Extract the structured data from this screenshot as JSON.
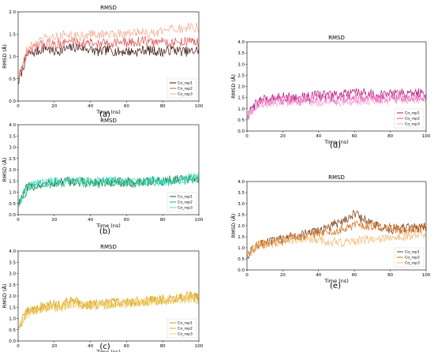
{
  "chart_data": [
    {
      "panel_label": "(a)",
      "type": "line",
      "title": "RMSD",
      "xlabel": "Time (ns)",
      "ylabel": "RMSD (Å)",
      "xlim": [
        0,
        100
      ],
      "ylim": [
        0,
        2.0
      ],
      "xticks": [
        0,
        20,
        40,
        60,
        80,
        100
      ],
      "yticks": [
        0.0,
        0.5,
        1.0,
        1.5,
        2.0
      ],
      "grid": false,
      "legend_position": "lower-right",
      "x": [
        0,
        5,
        10,
        15,
        20,
        25,
        30,
        35,
        40,
        45,
        50,
        55,
        60,
        65,
        70,
        75,
        80,
        85,
        90,
        95,
        100
      ],
      "series": [
        {
          "name": "Cα_rep1",
          "color": "#3d0f0f",
          "values": [
            0.4,
            1.05,
            1.1,
            1.2,
            1.1,
            1.15,
            1.2,
            1.2,
            1.15,
            1.1,
            1.15,
            1.1,
            1.12,
            1.1,
            1.15,
            1.12,
            1.1,
            1.15,
            1.12,
            1.1,
            1.15
          ]
        },
        {
          "name": "Cα_rep2",
          "color": "#d9534f",
          "values": [
            0.5,
            1.1,
            1.2,
            1.3,
            1.25,
            1.3,
            1.35,
            1.3,
            1.3,
            1.28,
            1.3,
            1.32,
            1.3,
            1.32,
            1.35,
            1.3,
            1.35,
            1.3,
            1.32,
            1.35,
            1.3
          ]
        },
        {
          "name": "Cα_rep3",
          "color": "#f2a992",
          "values": [
            0.5,
            1.15,
            1.3,
            1.4,
            1.4,
            1.5,
            1.45,
            1.45,
            1.5,
            1.48,
            1.5,
            1.52,
            1.5,
            1.55,
            1.52,
            1.5,
            1.55,
            1.6,
            1.62,
            1.65,
            1.65
          ]
        }
      ]
    },
    {
      "panel_label": "(b)",
      "type": "line",
      "title": "RMSD",
      "xlabel": "Time (ns)",
      "ylabel": "RMSD (Å)",
      "xlim": [
        0,
        100
      ],
      "ylim": [
        0,
        4.0
      ],
      "xticks": [
        0,
        20,
        40,
        60,
        80,
        100
      ],
      "yticks": [
        0.0,
        0.5,
        1.0,
        1.5,
        2.0,
        2.5,
        3.0,
        3.5,
        4.0
      ],
      "grid": false,
      "legend_position": "lower-right",
      "x": [
        0,
        5,
        10,
        15,
        20,
        25,
        30,
        35,
        40,
        45,
        50,
        55,
        60,
        65,
        70,
        75,
        80,
        85,
        90,
        95,
        100
      ],
      "series": [
        {
          "name": "Cα_rep1",
          "color": "#1e5a1e",
          "values": [
            0.5,
            1.2,
            1.3,
            1.35,
            1.4,
            1.45,
            1.5,
            1.45,
            1.4,
            1.45,
            1.4,
            1.45,
            1.45,
            1.45,
            1.45,
            1.5,
            1.5,
            1.55,
            1.55,
            1.6,
            1.6
          ]
        },
        {
          "name": "Cα_rep2",
          "color": "#1fb573",
          "values": [
            0.4,
            1.1,
            1.3,
            1.4,
            1.45,
            1.4,
            1.45,
            1.45,
            1.45,
            1.4,
            1.45,
            1.4,
            1.45,
            1.4,
            1.45,
            1.45,
            1.45,
            1.5,
            1.5,
            1.55,
            1.6
          ]
        },
        {
          "name": "Cα_rep3",
          "color": "#33e0d0",
          "values": [
            0.5,
            1.2,
            1.35,
            1.4,
            1.5,
            1.45,
            1.5,
            1.5,
            1.45,
            1.5,
            1.5,
            1.5,
            1.45,
            1.45,
            1.45,
            1.5,
            1.5,
            1.5,
            1.55,
            1.6,
            1.7
          ]
        }
      ]
    },
    {
      "panel_label": "(c)",
      "type": "line",
      "title": "RMSD",
      "xlabel": "Time (ns)",
      "ylabel": "RMSD (Å)",
      "xlim": [
        0,
        100
      ],
      "ylim": [
        0,
        4.0
      ],
      "xticks": [
        0,
        20,
        40,
        60,
        80,
        100
      ],
      "yticks": [
        0.0,
        0.5,
        1.0,
        1.5,
        2.0,
        2.5,
        3.0,
        3.5,
        4.0
      ],
      "grid": false,
      "legend_position": "lower-right",
      "x": [
        0,
        5,
        10,
        15,
        20,
        25,
        30,
        35,
        40,
        45,
        50,
        55,
        60,
        65,
        70,
        75,
        80,
        85,
        90,
        95,
        100
      ],
      "series": [
        {
          "name": "Cα_rep1",
          "color": "#d99a12",
          "values": [
            0.6,
            1.3,
            1.45,
            1.55,
            1.6,
            1.6,
            1.9,
            1.65,
            1.6,
            1.6,
            1.7,
            1.75,
            1.7,
            1.75,
            1.8,
            1.85,
            1.85,
            1.9,
            1.95,
            2.0,
            1.9
          ]
        },
        {
          "name": "Cα_rep2",
          "color": "#e3b22b",
          "values": [
            0.6,
            1.25,
            1.4,
            1.5,
            1.55,
            1.55,
            1.75,
            1.6,
            1.6,
            1.65,
            1.65,
            1.7,
            1.7,
            1.72,
            1.75,
            1.8,
            1.85,
            1.85,
            1.9,
            1.95,
            1.9
          ]
        },
        {
          "name": "Cα_rep3",
          "color": "#f0d37a",
          "values": [
            0.6,
            1.2,
            1.35,
            1.45,
            1.5,
            1.5,
            1.6,
            1.55,
            1.55,
            1.6,
            1.6,
            1.65,
            1.65,
            1.7,
            1.7,
            1.75,
            1.8,
            1.8,
            1.85,
            1.9,
            1.85
          ]
        }
      ]
    },
    {
      "panel_label": "(d)",
      "type": "line",
      "title": "RMSD",
      "xlabel": "Time (ns)",
      "ylabel": "RMSD (Å)",
      "xlim": [
        0,
        100
      ],
      "ylim": [
        0,
        4.0
      ],
      "xticks": [
        0,
        20,
        40,
        60,
        80,
        100
      ],
      "yticks": [
        0.0,
        0.5,
        1.0,
        1.5,
        2.0,
        2.5,
        3.0,
        3.5,
        4.0
      ],
      "grid": false,
      "legend_position": "lower-right",
      "x": [
        0,
        5,
        10,
        15,
        20,
        25,
        30,
        35,
        40,
        45,
        50,
        55,
        60,
        65,
        70,
        75,
        80,
        85,
        90,
        95,
        100
      ],
      "series": [
        {
          "name": "Cα_rep1",
          "color": "#b0147a",
          "values": [
            0.6,
            1.3,
            1.4,
            1.5,
            1.55,
            1.5,
            1.5,
            1.55,
            1.6,
            1.65,
            1.6,
            1.65,
            1.7,
            1.7,
            1.65,
            1.6,
            1.65,
            1.7,
            1.65,
            1.7,
            1.7
          ]
        },
        {
          "name": "Cα_rep2",
          "color": "#e04aa8",
          "values": [
            0.6,
            1.2,
            1.3,
            1.35,
            1.4,
            1.4,
            1.35,
            1.4,
            1.45,
            1.45,
            1.4,
            1.45,
            1.45,
            1.5,
            1.45,
            1.45,
            1.5,
            1.5,
            1.5,
            1.55,
            1.5
          ]
        },
        {
          "name": "Cα_rep3",
          "color": "#f4a6d6",
          "values": [
            0.6,
            1.15,
            1.25,
            1.3,
            1.35,
            1.3,
            1.3,
            1.35,
            1.3,
            1.35,
            1.3,
            1.35,
            1.35,
            1.4,
            1.35,
            1.4,
            1.4,
            1.45,
            1.4,
            1.45,
            1.45
          ]
        }
      ]
    },
    {
      "panel_label": "(e)",
      "type": "line",
      "title": "RMSD",
      "xlabel": "Time (ns)",
      "ylabel": "RMSD (Å)",
      "xlim": [
        0,
        100
      ],
      "ylim": [
        0,
        4.0
      ],
      "xticks": [
        0,
        20,
        40,
        60,
        80,
        100
      ],
      "yticks": [
        0.0,
        0.5,
        1.0,
        1.5,
        2.0,
        2.5,
        3.0,
        3.5,
        4.0
      ],
      "grid": false,
      "legend_position": "lower-right",
      "x": [
        0,
        5,
        10,
        15,
        20,
        25,
        30,
        35,
        40,
        45,
        50,
        55,
        60,
        65,
        70,
        75,
        80,
        85,
        90,
        95,
        100
      ],
      "series": [
        {
          "name": "Cα_rep1",
          "color": "#7a3b0f",
          "values": [
            0.6,
            1.1,
            1.2,
            1.3,
            1.4,
            1.5,
            1.55,
            1.65,
            1.8,
            1.9,
            2.1,
            2.3,
            2.55,
            2.3,
            2.1,
            1.9,
            1.8,
            1.85,
            1.9,
            1.9,
            1.95
          ]
        },
        {
          "name": "Cα_rep2",
          "color": "#d16d1b",
          "values": [
            0.6,
            1.1,
            1.2,
            1.25,
            1.35,
            1.45,
            1.55,
            1.6,
            1.7,
            1.75,
            1.8,
            1.9,
            2.0,
            2.05,
            2.0,
            1.95,
            1.9,
            1.85,
            1.8,
            1.85,
            1.9
          ]
        },
        {
          "name": "Cα_rep3",
          "color": "#f4b873",
          "values": [
            0.6,
            1.05,
            1.15,
            1.2,
            1.3,
            1.35,
            1.4,
            1.45,
            1.35,
            1.3,
            1.25,
            1.25,
            1.3,
            1.35,
            1.4,
            1.45,
            1.5,
            1.5,
            1.55,
            1.6,
            1.65
          ]
        }
      ]
    }
  ]
}
